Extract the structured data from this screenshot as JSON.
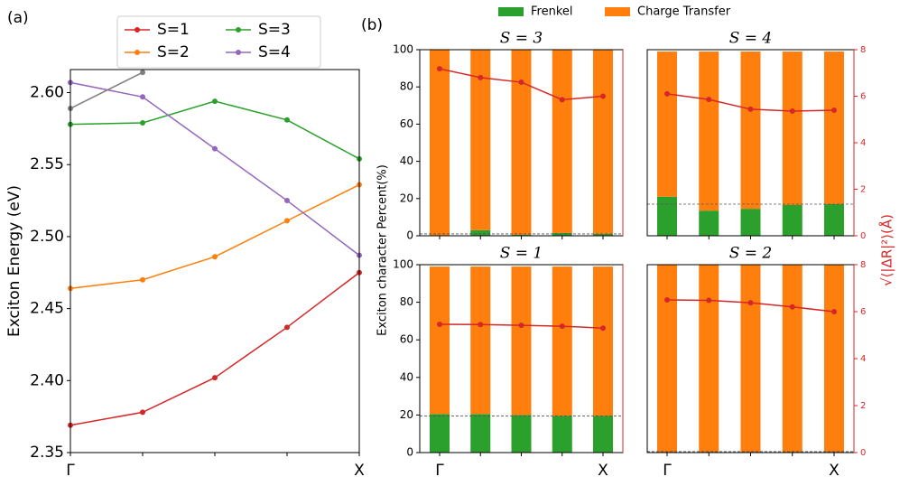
{
  "panel_labels": [
    "(a)",
    "(b)"
  ],
  "chart_data": [
    {
      "type": "line",
      "ylabel": "Exciton Energy (eV)",
      "categories": [
        "Γ",
        null,
        null,
        null,
        "X"
      ],
      "ylim": [
        2.35,
        2.616
      ],
      "yticks": [
        2.35,
        {
          "value": 2.4,
          "label": "2.40"
        },
        2.45,
        {
          "value": 2.5,
          "label": "2.50"
        },
        2.55,
        {
          "value": 2.6,
          "label": "2.60"
        }
      ],
      "series": [
        {
          "name": "S=1",
          "color": "#d62728",
          "values": [
            2.369,
            2.378,
            2.402,
            2.437,
            2.475
          ]
        },
        {
          "name": "S=2",
          "color": "#ff7f0e",
          "values": [
            2.464,
            2.47,
            2.486,
            2.511,
            2.536
          ]
        },
        {
          "name": "S=3",
          "color": "#2ca02c",
          "values": [
            2.578,
            2.579,
            2.594,
            2.581,
            2.554
          ]
        },
        {
          "name": "S=4",
          "color": "#9467bd",
          "values": [
            2.607,
            2.597,
            2.561,
            2.525,
            2.487
          ]
        },
        {
          "color": "#7f7f7f",
          "values": [
            2.589,
            2.614,
            null,
            null,
            null
          ]
        }
      ]
    },
    {
      "type": "bar",
      "title": "S = 3",
      "ylabel": "Exciton character Percent(%)",
      "ylim": [
        0,
        100
      ],
      "yticks": [
        0,
        20,
        40,
        60,
        80,
        100
      ],
      "y2lim": [
        0,
        8
      ],
      "hline": 1,
      "series": [
        {
          "name": "Frenkel",
          "color": "#2ca02c",
          "values": [
            0,
            3,
            0.5,
            1.5,
            1
          ]
        },
        {
          "name": "Charge Transfer",
          "color": "#ff7f0e",
          "values": [
            100,
            97,
            99.5,
            98.5,
            99
          ]
        },
        {
          "color": "#d62728",
          "axis": "y2",
          "values": [
            7.18,
            6.8,
            6.6,
            5.85,
            6.0
          ]
        }
      ]
    },
    {
      "type": "bar",
      "title": "S = 4",
      "y2label": "√⟨|ΔR|²⟩(Å)",
      "ylim": [
        0,
        100
      ],
      "y2lim": [
        0,
        8
      ],
      "y2ticks": [
        0,
        2,
        4,
        6,
        8
      ],
      "hline": 17,
      "series": [
        {
          "color": "#2ca02c",
          "values": [
            21,
            13.5,
            14.5,
            16.5,
            17
          ]
        },
        {
          "color": "#ff7f0e",
          "values": [
            78,
            85.5,
            84.5,
            82.5,
            82
          ]
        },
        {
          "color": "#d62728",
          "axis": "y2",
          "values": [
            6.1,
            5.86,
            5.44,
            5.36,
            5.4
          ]
        }
      ]
    },
    {
      "type": "bar",
      "title": "S = 1",
      "categories": [
        "Γ",
        null,
        null,
        null,
        "X"
      ],
      "ylim": [
        0,
        100
      ],
      "yticks": [
        0,
        20,
        40,
        60,
        80,
        100
      ],
      "y2lim": [
        0,
        8
      ],
      "hline": 19.5,
      "series": [
        {
          "color": "#2ca02c",
          "values": [
            20.5,
            20.5,
            20,
            19.5,
            19.5
          ]
        },
        {
          "color": "#ff7f0e",
          "values": [
            78.5,
            78.5,
            79,
            79.5,
            79.5
          ]
        },
        {
          "color": "#d62728",
          "axis": "y2",
          "values": [
            5.46,
            5.45,
            5.42,
            5.38,
            5.3
          ]
        }
      ]
    },
    {
      "type": "bar",
      "title": "S = 2",
      "categories": [
        "Γ",
        null,
        null,
        null,
        "X"
      ],
      "ylim": [
        0,
        100
      ],
      "y2lim": [
        0,
        8
      ],
      "y2ticks": [
        0,
        2,
        4,
        6,
        8
      ],
      "hline": 0.5,
      "series": [
        {
          "color": "#2ca02c",
          "values": [
            0,
            0,
            0,
            0,
            0
          ]
        },
        {
          "color": "#ff7f0e",
          "values": [
            100,
            100,
            100,
            100,
            100
          ]
        },
        {
          "color": "#d62728",
          "axis": "y2",
          "values": [
            6.5,
            6.48,
            6.38,
            6.2,
            6.0
          ]
        }
      ]
    }
  ]
}
